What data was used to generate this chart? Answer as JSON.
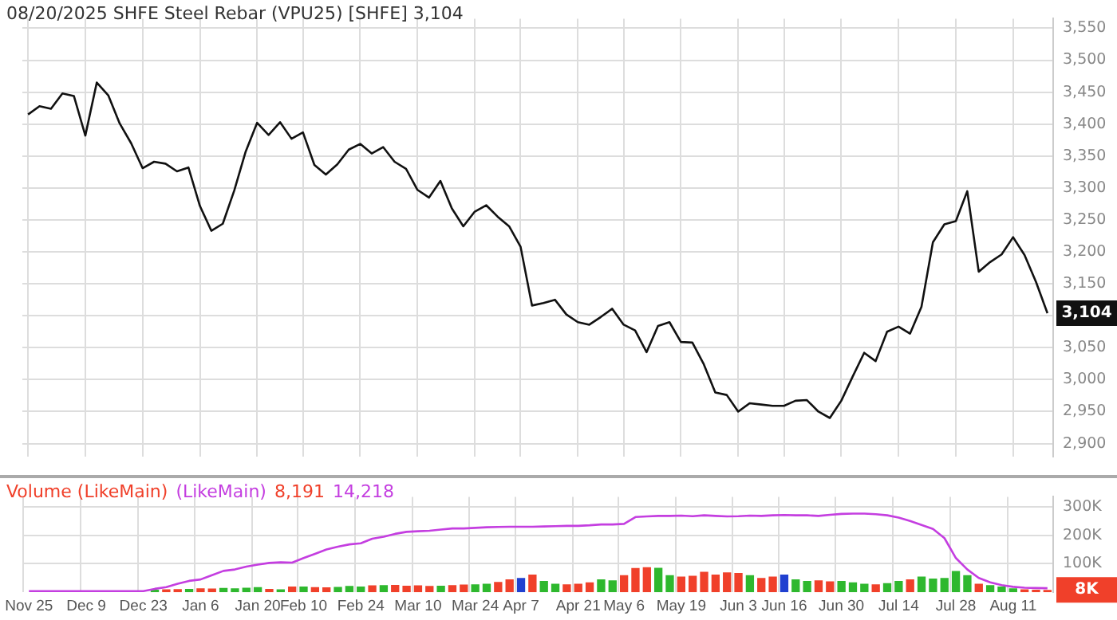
{
  "chart_data": [
    {
      "type": "line",
      "title": "08/20/2025 SHFE Steel Rebar (VPU25) [SHFE] 3,104",
      "categories": [
        null,
        null,
        null,
        null,
        null,
        null,
        null,
        null,
        null,
        null,
        null,
        null,
        null,
        null,
        null,
        null,
        null,
        null,
        null,
        null,
        null,
        null,
        null,
        null,
        null,
        null,
        null,
        null,
        null,
        null,
        null,
        null,
        null,
        null,
        null,
        null,
        null,
        null,
        null,
        null,
        null,
        null,
        null,
        null,
        null,
        null,
        null,
        null,
        null,
        null,
        null,
        null,
        null,
        null,
        null,
        null,
        null,
        null,
        null,
        null,
        null,
        null,
        null,
        null,
        null,
        null,
        null,
        null,
        null,
        null,
        null,
        null,
        null,
        null,
        null,
        null,
        null,
        null,
        null,
        null,
        null,
        null,
        null,
        null,
        null,
        null,
        null,
        null,
        null,
        null
      ],
      "series": [
        {
          "color": "#111111",
          "values": [
            3415,
            3428,
            3424,
            3448,
            3444,
            3382,
            3465,
            3445,
            3401,
            3370,
            3331,
            3341,
            3338,
            3326,
            3332,
            3272,
            3233,
            3244,
            3296,
            3357,
            3402,
            3383,
            3403,
            3377,
            3387,
            3336,
            3321,
            3337,
            3360,
            3369,
            3354,
            3364,
            3341,
            3330,
            3297,
            3285,
            3311,
            3268,
            3240,
            3263,
            3273,
            3255,
            3240,
            3208,
            3116,
            3120,
            3125,
            3102,
            3090,
            3086,
            3098,
            3111,
            3086,
            3077,
            3043,
            3084,
            3090,
            3059,
            3058,
            3024,
            2980,
            2976,
            2950,
            2963,
            2961,
            2959,
            2959,
            2967,
            2968,
            2950,
            2940,
            2967,
            3005,
            3042,
            3029,
            3075,
            3083,
            3072,
            3114,
            3215,
            3243,
            3248,
            3295,
            3169,
            3184,
            3196,
            3223,
            3195,
            3153,
            3104
          ]
        }
      ],
      "ylim": [
        2880,
        3565
      ],
      "yticks": [
        {
          "value": 2900,
          "label": "2,900"
        },
        {
          "value": 2950,
          "label": "2,950"
        },
        {
          "value": 3000,
          "label": "3,000"
        },
        {
          "value": 3050,
          "label": "3,050"
        },
        {
          "value": 3100,
          "label": null
        },
        {
          "value": 3150,
          "label": "3,150"
        },
        {
          "value": 3200,
          "label": "3,200"
        },
        {
          "value": 3250,
          "label": "3,250"
        },
        {
          "value": 3300,
          "label": "3,300"
        },
        {
          "value": 3350,
          "label": "3,350"
        },
        {
          "value": 3400,
          "label": "3,400"
        },
        {
          "value": 3450,
          "label": "3,450"
        },
        {
          "value": 3500,
          "label": "3,500"
        },
        {
          "value": 3550,
          "label": "3,550"
        }
      ],
      "grid": true,
      "tick_labels": "y",
      "annotations": [
        {
          "text": "3,104",
          "y": 3104
        }
      ]
    },
    {
      "type": "bar",
      "categories": [
        "Nov 25",
        null,
        null,
        null,
        null,
        "Dec 9",
        null,
        null,
        null,
        null,
        "Dec 23",
        null,
        null,
        null,
        null,
        "Jan 6",
        null,
        null,
        null,
        null,
        "Jan 20",
        null,
        null,
        null,
        "Feb 10",
        null,
        null,
        null,
        null,
        "Feb 24",
        null,
        null,
        null,
        null,
        "Mar 10",
        null,
        null,
        null,
        null,
        "Mar 24",
        null,
        null,
        null,
        "Apr 7",
        null,
        null,
        null,
        null,
        "Apr 21",
        null,
        null,
        null,
        "May 6",
        null,
        null,
        null,
        null,
        "May 19",
        null,
        null,
        null,
        null,
        "Jun 3",
        null,
        null,
        null,
        "Jun 16",
        null,
        null,
        null,
        null,
        "Jun 30",
        null,
        null,
        null,
        null,
        "Jul 14",
        null,
        null,
        null,
        null,
        "Jul 28",
        null,
        null,
        null,
        null,
        "Aug 11",
        null,
        null,
        null
      ],
      "series": [
        {
          "name": "Volume (LikeMain)",
          "colors": [
            "#2eb82e",
            "#2eb82e",
            "#2eb82e",
            "#2eb82e",
            "#2eb82e",
            "#2eb82e",
            "#2eb82e",
            "#2eb82e",
            "#2eb82e",
            "#2eb82e",
            "#f0402a",
            "#2eb82e",
            "#f0402a",
            "#f0402a",
            "#2eb82e",
            "#f0402a",
            "#f0402a",
            "#2eb82e",
            "#2eb82e",
            "#2eb82e",
            "#2eb82e",
            "#f0402a",
            "#2eb82e",
            "#f0402a",
            "#2eb82e",
            "#f0402a",
            "#f0402a",
            "#2eb82e",
            "#2eb82e",
            "#2eb82e",
            "#f0402a",
            "#2eb82e",
            "#f0402a",
            "#f0402a",
            "#f0402a",
            "#f0402a",
            "#2eb82e",
            "#f0402a",
            "#f0402a",
            "#2eb82e",
            "#2eb82e",
            "#f0402a",
            "#f0402a",
            "#2040d0",
            "#f0402a",
            "#2eb82e",
            "#2eb82e",
            "#f0402a",
            "#f0402a",
            "#f0402a",
            "#2eb82e",
            "#2eb82e",
            "#f0402a",
            "#f0402a",
            "#f0402a",
            "#2eb82e",
            "#2eb82e",
            "#f0402a",
            "#f0402a",
            "#f0402a",
            "#f0402a",
            "#f0402a",
            "#f0402a",
            "#2eb82e",
            "#f0402a",
            "#f0402a",
            "#2040d0",
            "#2eb82e",
            "#2eb82e",
            "#f0402a",
            "#f0402a",
            "#2eb82e",
            "#2eb82e",
            "#2eb82e",
            "#f0402a",
            "#2eb82e",
            "#2eb82e",
            "#f0402a",
            "#2eb82e",
            "#2eb82e",
            "#2eb82e",
            "#2eb82e",
            "#2eb82e",
            "#f0402a",
            "#2eb82e",
            "#2eb82e",
            "#2eb82e",
            "#f0402a",
            "#f0402a",
            "#f0402a"
          ],
          "values": [
            null,
            null,
            null,
            null,
            null,
            null,
            null,
            null,
            null,
            null,
            null,
            9000,
            10000,
            11000,
            12000,
            14000,
            13000,
            15000,
            14000,
            16000,
            18000,
            12000,
            10000,
            20000,
            20000,
            18000,
            17000,
            19000,
            22000,
            20000,
            24000,
            25000,
            26000,
            23000,
            24000,
            22000,
            23000,
            25000,
            27000,
            28000,
            30000,
            36000,
            45000,
            50000,
            62000,
            40000,
            30000,
            28000,
            30000,
            35000,
            45000,
            42000,
            60000,
            85000,
            88000,
            86000,
            60000,
            55000,
            58000,
            72000,
            62000,
            70000,
            68000,
            60000,
            50000,
            55000,
            62000,
            45000,
            40000,
            42000,
            38000,
            40000,
            35000,
            30000,
            28000,
            32000,
            40000,
            45000,
            55000,
            48000,
            50000,
            75000,
            60000,
            30000,
            25000,
            20000,
            14000,
            10000,
            9000,
            8191
          ]
        },
        {
          "name": "(LikeMain)",
          "type": "line",
          "color": "#c43ee0",
          "values": [
            4000,
            4000,
            4000,
            4000,
            4000,
            4000,
            4000,
            4000,
            4000,
            4000,
            4000,
            12000,
            18000,
            30000,
            40000,
            45000,
            60000,
            75000,
            80000,
            90000,
            97000,
            103000,
            105000,
            104000,
            120000,
            135000,
            150000,
            160000,
            168000,
            172000,
            188000,
            195000,
            205000,
            212000,
            214000,
            216000,
            220000,
            224000,
            224000,
            226000,
            228000,
            229000,
            230000,
            230000,
            230000,
            231000,
            232000,
            233000,
            233000,
            235000,
            238000,
            238000,
            240000,
            264000,
            266000,
            268000,
            268000,
            269000,
            267000,
            270000,
            268000,
            266000,
            267000,
            269000,
            268000,
            270000,
            271000,
            270000,
            270000,
            268000,
            272000,
            275000,
            276000,
            276000,
            274000,
            270000,
            262000,
            250000,
            236000,
            222000,
            190000,
            120000,
            80000,
            50000,
            35000,
            25000,
            19000,
            16000,
            15000,
            14218
          ]
        }
      ],
      "ylim": [
        0,
        335000
      ],
      "yticks": [
        {
          "value": 100000,
          "label": "100K"
        },
        {
          "value": 200000,
          "label": "200K"
        },
        {
          "value": 300000,
          "label": "300K"
        }
      ],
      "grid": true,
      "legend": "top left",
      "annotations": [
        "8,191",
        "14,218",
        {
          "text": "8K",
          "y": 8191
        }
      ]
    }
  ]
}
